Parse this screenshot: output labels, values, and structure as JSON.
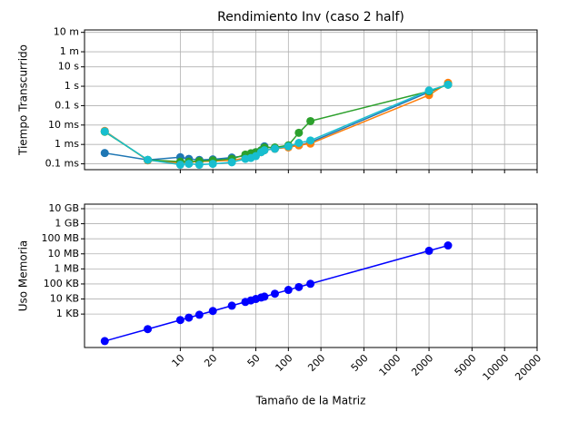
{
  "chart_data": [
    {
      "type": "line",
      "title": "Rendimiento Inv (caso 2 half)",
      "y_label": "Tiempo Transcurrido",
      "x_scale": "log",
      "y_scale": "log",
      "grid": true,
      "xlim": [
        1.3,
        20000
      ],
      "ylim": [
        5e-05,
        800
      ],
      "xticks": [
        10,
        20,
        50,
        100,
        200,
        500,
        1000,
        2000,
        5000,
        10000,
        20000
      ],
      "yticks": [
        {
          "value": 0.0001,
          "label": "0.1 ms"
        },
        {
          "value": 0.001,
          "label": "1 ms"
        },
        {
          "value": 0.01,
          "label": "10 ms"
        },
        {
          "value": 0.1,
          "label": "0.1 s"
        },
        {
          "value": 1,
          "label": "1 s"
        },
        {
          "value": 10,
          "label": "10 s"
        },
        {
          "value": 60,
          "label": "1 m"
        },
        {
          "value": 600,
          "label": "10 m"
        }
      ],
      "x": [
        2,
        5,
        10,
        12,
        15,
        20,
        30,
        40,
        45,
        50,
        56,
        60,
        75,
        100,
        125,
        160,
        2000,
        3000
      ],
      "series": [
        {
          "color": "#1f77b4",
          "values": [
            0.00036,
            0.00016,
            0.00022,
            0.00018,
            0.00016,
            0.00017,
            0.00021,
            0.00026,
            0.0003,
            0.0004,
            0.0005,
            0.0008,
            0.0006,
            0.0008,
            0.0009,
            0.0013,
            0.5,
            1.3
          ]
        },
        {
          "color": "#ff7f0e",
          "values": [
            0.005,
            0.00015,
            0.00011,
            0.00012,
            0.00013,
            0.00014,
            0.00015,
            0.0002,
            0.00025,
            0.0003,
            0.0004,
            0.0005,
            0.0006,
            0.0007,
            0.0009,
            0.0011,
            0.35,
            1.5
          ]
        },
        {
          "color": "#2ca02c",
          "values": [
            0.0045,
            0.00016,
            0.00013,
            0.00013,
            0.00014,
            0.00015,
            0.00018,
            0.0003,
            0.00035,
            0.0004,
            0.0005,
            0.0007,
            0.0007,
            0.0009,
            0.004,
            0.016,
            0.55,
            1.2
          ]
        },
        {
          "color": "#17becf",
          "values": [
            0.0047,
            0.00016,
            9e-05,
            0.0001,
            9e-05,
            0.0001,
            0.00012,
            0.00018,
            0.0002,
            0.00025,
            0.0004,
            0.0005,
            0.0006,
            0.0008,
            0.0012,
            0.0016,
            0.6,
            1.2
          ]
        }
      ]
    },
    {
      "type": "line",
      "y_label": "Uso Memoria",
      "x_label": "Tamaño de la Matriz",
      "x_scale": "log",
      "y_scale": "log",
      "grid": true,
      "xlim": [
        1.3,
        20000
      ],
      "ylim": [
        6,
        20000000000
      ],
      "xticks": [
        10,
        20,
        50,
        100,
        200,
        500,
        1000,
        2000,
        5000,
        10000,
        20000
      ],
      "yticks": [
        {
          "value": 1000,
          "label": "1 KB"
        },
        {
          "value": 10000,
          "label": "10 KB"
        },
        {
          "value": 100000,
          "label": "100 KB"
        },
        {
          "value": 1000000,
          "label": "1 MB"
        },
        {
          "value": 10000000,
          "label": "10 MB"
        },
        {
          "value": 100000000,
          "label": "100 MB"
        },
        {
          "value": 1000000000,
          "label": "1 GB"
        },
        {
          "value": 10000000000,
          "label": "10 GB"
        }
      ],
      "x": [
        2,
        5,
        10,
        12,
        15,
        20,
        30,
        40,
        45,
        50,
        56,
        60,
        75,
        100,
        125,
        160,
        2000,
        3000
      ],
      "series": [
        {
          "color": "#0000ff",
          "values": [
            16,
            100,
            400,
            576,
            900,
            1600,
            3600,
            6400,
            8100,
            10000,
            12544,
            14400,
            22500,
            40000,
            62500,
            102400,
            16000000,
            36000000
          ]
        }
      ]
    }
  ]
}
